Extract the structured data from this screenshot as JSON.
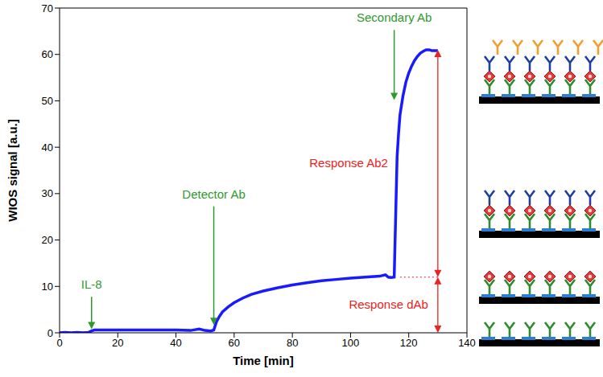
{
  "chart_data": {
    "type": "line",
    "x_label": "Time [min]",
    "y_label": "WIOS signal [a.u.]",
    "xlim": [
      0,
      140
    ],
    "xticks": [
      0,
      20,
      40,
      60,
      80,
      100,
      120,
      140
    ],
    "ylim": [
      0,
      70
    ],
    "yticks": [
      0,
      10,
      20,
      30,
      40,
      50,
      60,
      70
    ],
    "grid": false,
    "color": "#1a1aff",
    "x": [
      0,
      2,
      4,
      6,
      8,
      10,
      11,
      12,
      15,
      20,
      30,
      40,
      45,
      48,
      50,
      52,
      53,
      54,
      55,
      56,
      58,
      60,
      63,
      66,
      70,
      75,
      80,
      85,
      90,
      95,
      100,
      105,
      110,
      112,
      113,
      114,
      115,
      115.5,
      116,
      116.5,
      117,
      118,
      119,
      120,
      121,
      122,
      123,
      124,
      125,
      126,
      127,
      128,
      130
    ],
    "values": [
      0,
      0.1,
      0,
      0.1,
      0,
      0.1,
      0.4,
      0.6,
      0.6,
      0.6,
      0.6,
      0.6,
      0.5,
      0.8,
      0.5,
      0.4,
      0.6,
      2.5,
      3.6,
      4.5,
      5.6,
      6.5,
      7.5,
      8.3,
      9,
      9.7,
      10.3,
      10.8,
      11.2,
      11.5,
      11.8,
      12,
      12.2,
      12.5,
      12,
      11.9,
      12,
      25,
      38,
      43,
      47,
      51,
      54,
      56,
      57.5,
      58.7,
      59.6,
      60.3,
      60.7,
      61,
      61,
      60.8,
      60.8
    ],
    "annotations": [
      {
        "text": "IL-8",
        "x": 11,
        "y": 0.6,
        "text_y": 9.5,
        "color": "#2e9a2e"
      },
      {
        "text": "Detector Ab",
        "x": 53,
        "y": 1.5,
        "text_y": 29,
        "color": "#2e9a2e"
      },
      {
        "text": "Secondary Ab",
        "x": 115,
        "y": 50,
        "text_y": 67,
        "color": "#2e9a2e"
      }
    ],
    "brackets": [
      {
        "text": "Response Ab2",
        "x": 130,
        "y_from": 12,
        "y_to": 61,
        "guide_from_x": 117,
        "color": "#ee2222"
      },
      {
        "text": "Response dAb",
        "x": 130,
        "y_from": 0,
        "y_to": 12,
        "color": "#ee2222"
      }
    ]
  }
}
